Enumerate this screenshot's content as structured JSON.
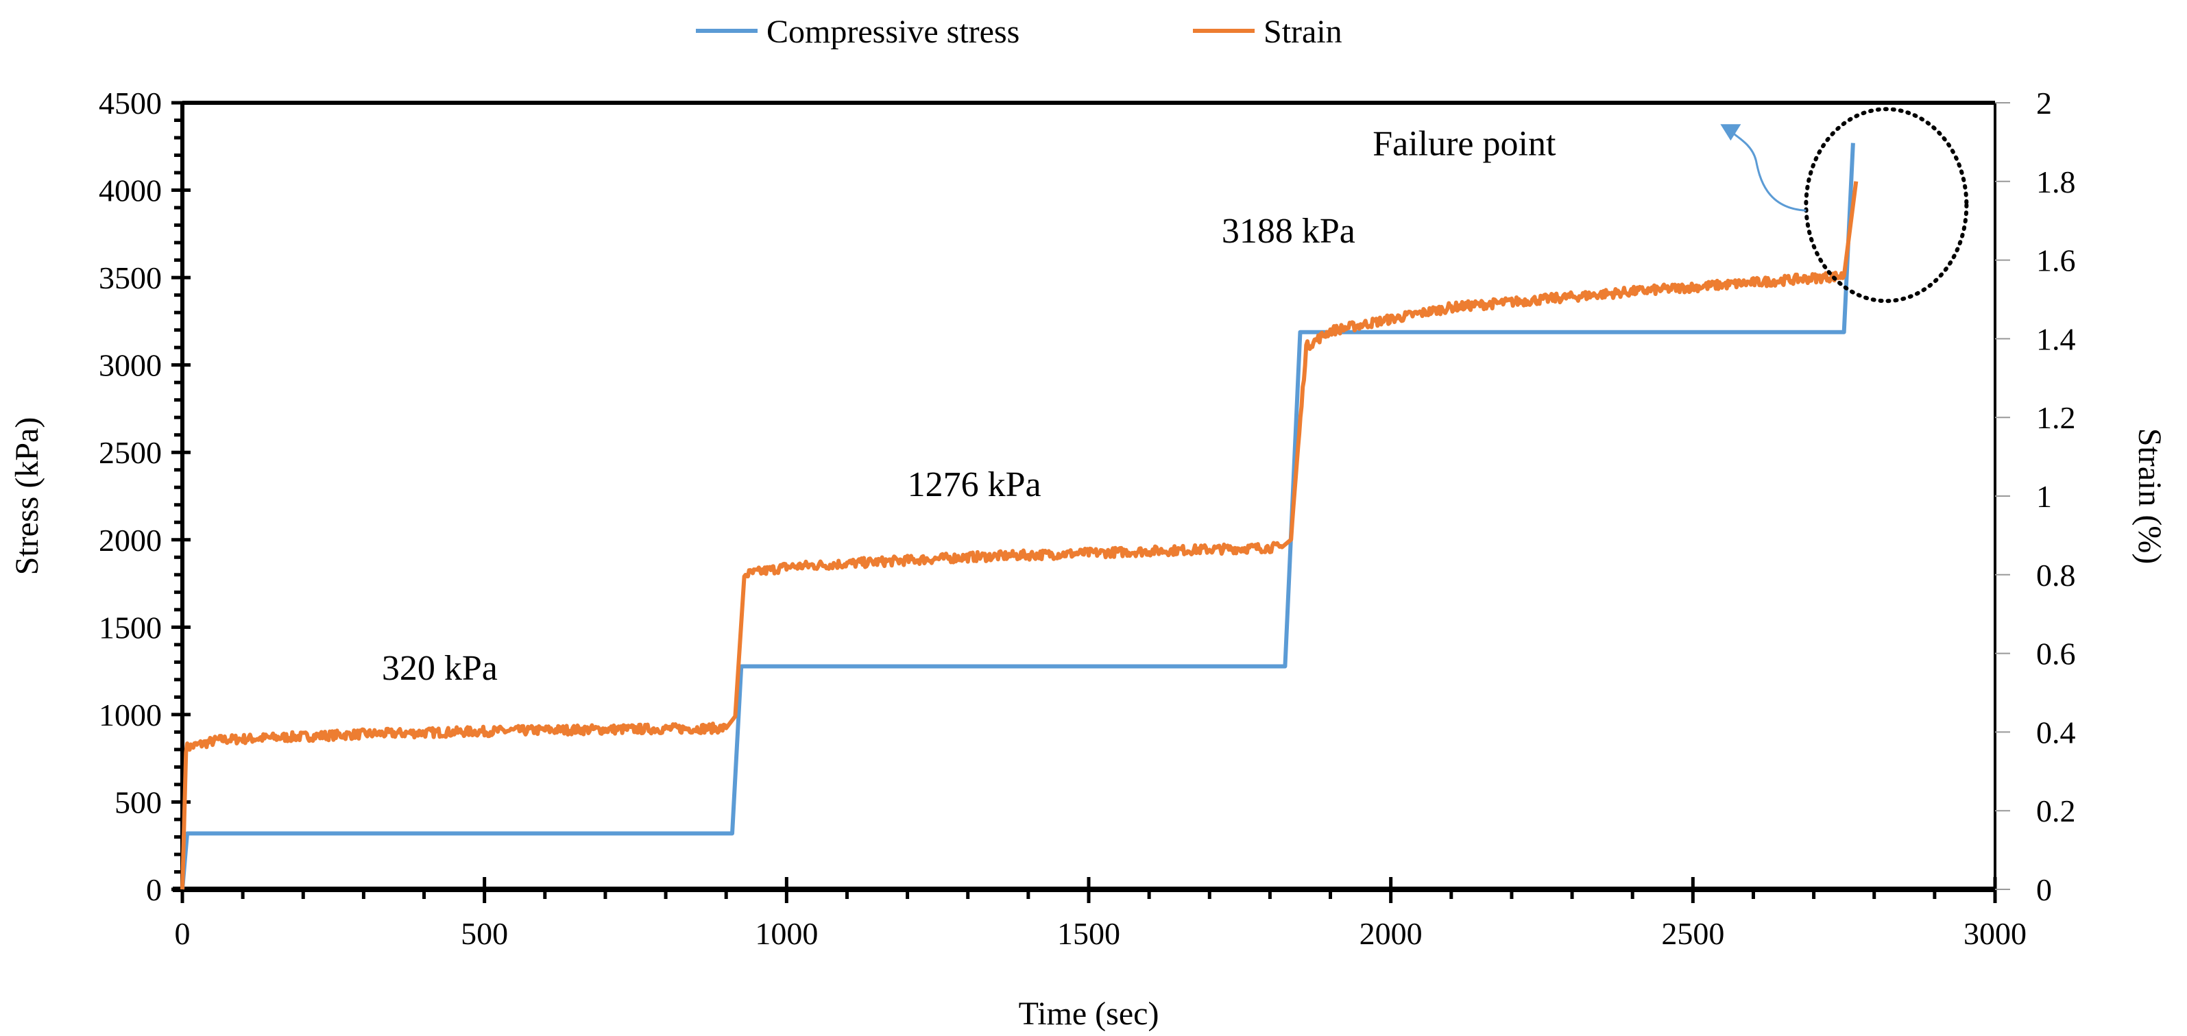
{
  "chart_data": {
    "type": "line",
    "title": "",
    "xlabel": "Time (sec)",
    "ylabel": "Stress (kPa)",
    "y2label": "Strain (%)",
    "xlim": [
      0,
      3000
    ],
    "ylim": [
      0,
      4500
    ],
    "y2lim": [
      0,
      2
    ],
    "xticks": [
      0,
      500,
      1000,
      1500,
      2000,
      2500,
      3000
    ],
    "yticks": [
      0,
      500,
      1000,
      1500,
      2000,
      2500,
      3000,
      3500,
      4000,
      4500
    ],
    "y2ticks": [
      "0",
      "0.2",
      "0.4",
      "0.6",
      "0.8",
      "1",
      "1.2",
      "1.4",
      "1.6",
      "1.8",
      "2"
    ],
    "grid": false,
    "legend_position": "top-center",
    "series": [
      {
        "name": "Compressive stress",
        "axis": "left",
        "color": "#5B9BD5",
        "x": [
          0,
          8,
          910,
          925,
          1825,
          1850,
          2750,
          2765
        ],
        "y": [
          0,
          320,
          320,
          1276,
          1276,
          3188,
          3188,
          4270
        ]
      },
      {
        "name": "Strain",
        "axis": "right",
        "color": "#ED7D31",
        "noise_amplitude": 0.012,
        "x": [
          0,
          6,
          60,
          300,
          600,
          900,
          915,
          930,
          1000,
          1300,
          1600,
          1820,
          1835,
          1860,
          1900,
          2100,
          2400,
          2750,
          2770
        ],
        "y": [
          0,
          0.36,
          0.38,
          0.395,
          0.405,
          0.41,
          0.44,
          0.8,
          0.82,
          0.845,
          0.86,
          0.87,
          0.9,
          1.38,
          1.42,
          1.48,
          1.52,
          1.56,
          1.8
        ]
      }
    ],
    "annotations": [
      {
        "text": "320 kPa",
        "x": 330,
        "y": 1200
      },
      {
        "text": "1276 kPa",
        "x": 1200,
        "y": 2250
      },
      {
        "text": "3188 kPa",
        "x": 1720,
        "y": 3700
      },
      {
        "text": "Failure point",
        "x": 1970,
        "y": 4200
      }
    ],
    "highlight": {
      "label": "failure-region",
      "x": 2820,
      "y2": 1.74
    }
  }
}
